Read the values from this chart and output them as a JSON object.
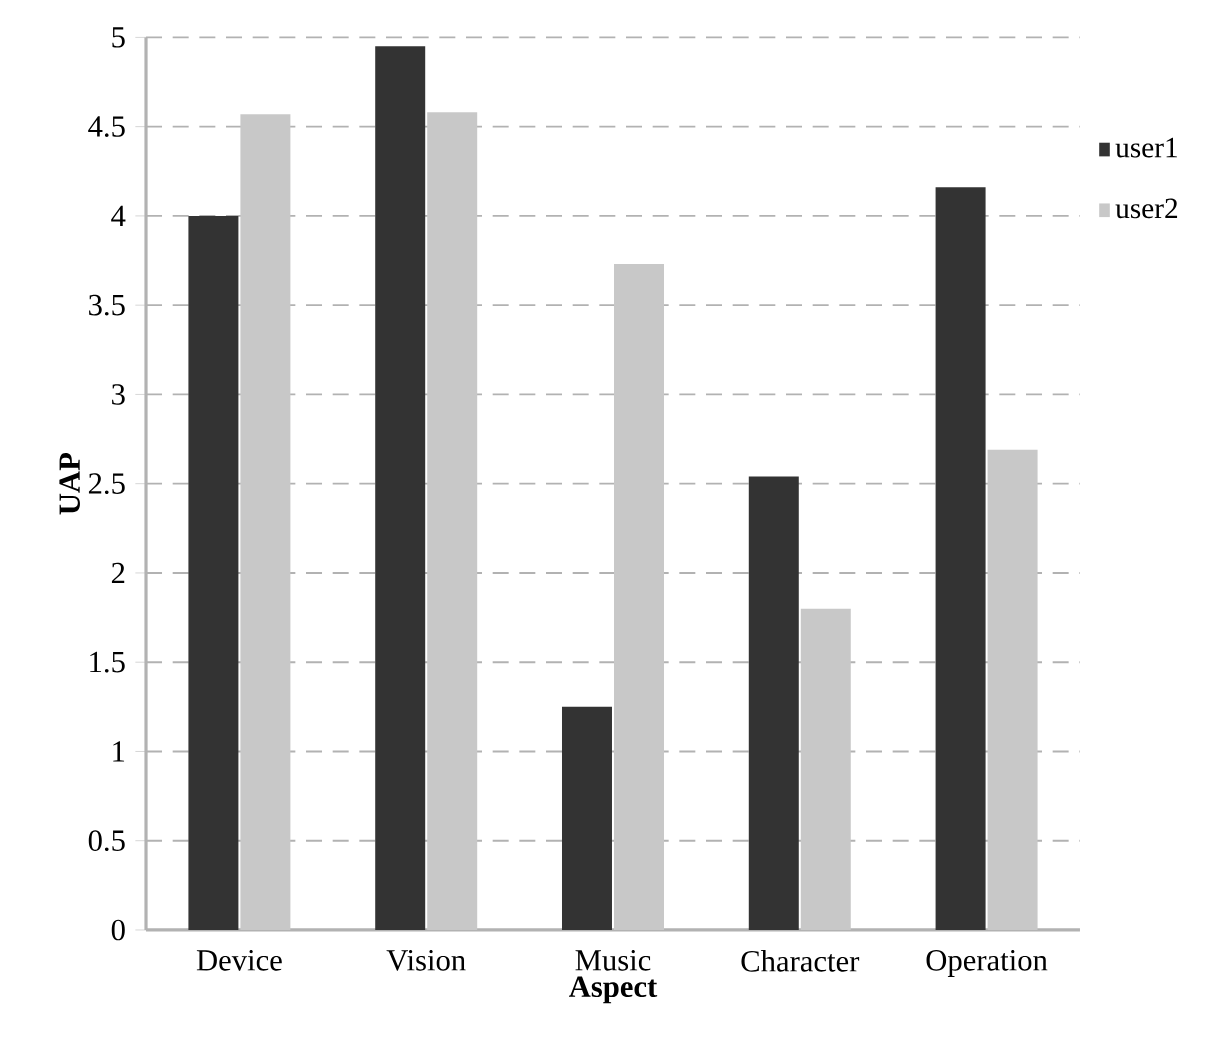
{
  "chart_data": {
    "type": "bar",
    "xlabel": "Aspect",
    "ylabel": "UAP",
    "categories": [
      "Device",
      "Vision",
      "Music",
      "Character",
      "Operation"
    ],
    "series": [
      {
        "name": "user1",
        "color": "#333333",
        "values": [
          4.0,
          4.95,
          1.25,
          2.54,
          4.16
        ]
      },
      {
        "name": "user2",
        "color": "#c8c8c8",
        "values": [
          4.57,
          4.58,
          3.73,
          1.8,
          2.69
        ]
      }
    ],
    "ylim": [
      0,
      5
    ],
    "yticks": [
      0,
      0.5,
      1,
      1.5,
      2,
      2.5,
      3,
      3.5,
      4,
      4.5,
      5
    ],
    "grid": "y",
    "legend": "right"
  }
}
